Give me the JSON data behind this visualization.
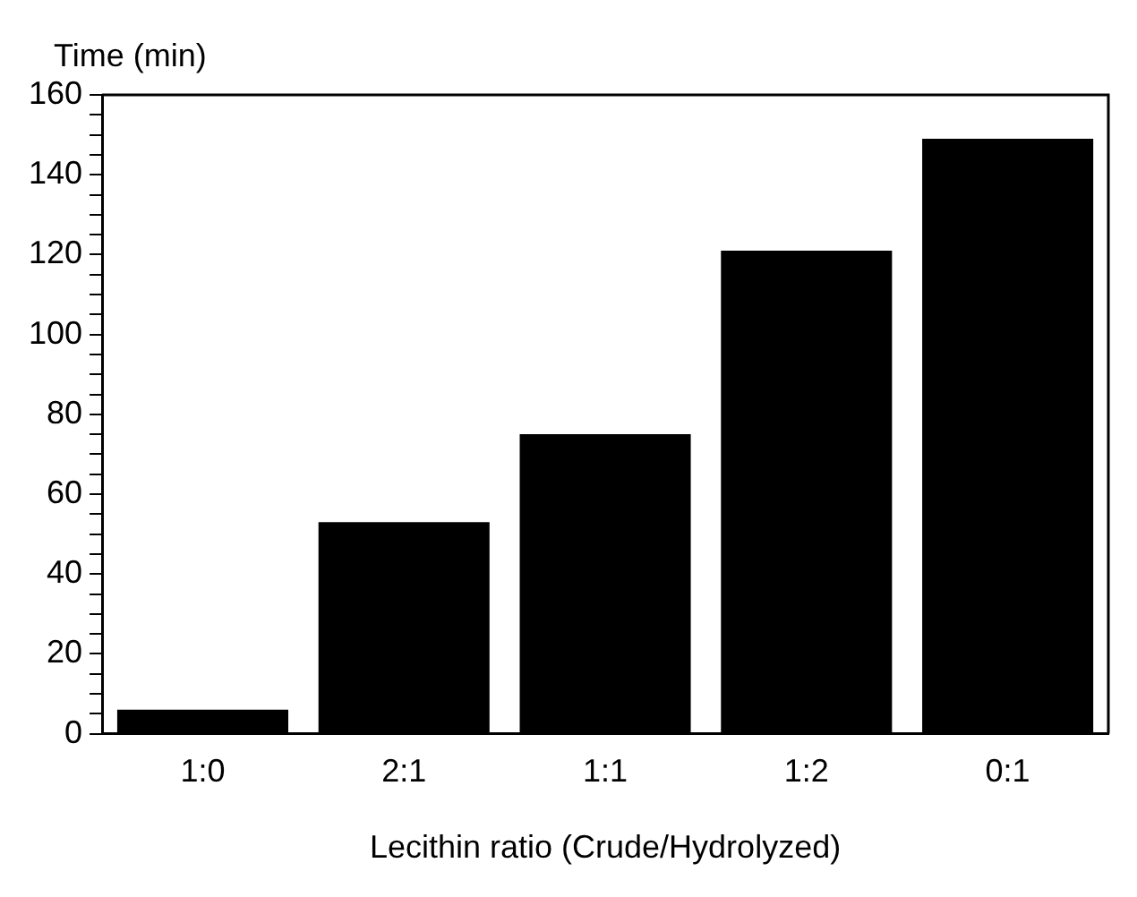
{
  "chart_data": {
    "type": "bar",
    "ylabel": "Time (min)",
    "xlabel": "Lecithin ratio (Crude/Hydrolyzed)",
    "categories": [
      "1:0",
      "2:1",
      "1:1",
      "1:2",
      "0:1"
    ],
    "values": [
      6,
      53,
      75,
      121,
      149
    ],
    "color": "#000000",
    "ylim": [
      0,
      160
    ],
    "yticks": [
      0,
      {
        "value": 5,
        "label": null
      },
      {
        "value": 10,
        "label": null
      },
      {
        "value": 15,
        "label": null
      },
      20,
      {
        "value": 25,
        "label": null
      },
      {
        "value": 30,
        "label": null
      },
      {
        "value": 35,
        "label": null
      },
      40,
      {
        "value": 45,
        "label": null
      },
      {
        "value": 50,
        "label": null
      },
      {
        "value": 55,
        "label": null
      },
      60,
      {
        "value": 65,
        "label": null
      },
      {
        "value": 70,
        "label": null
      },
      {
        "value": 75,
        "label": null
      },
      80,
      {
        "value": 85,
        "label": null
      },
      {
        "value": 90,
        "label": null
      },
      {
        "value": 95,
        "label": null
      },
      100,
      {
        "value": 105,
        "label": null
      },
      {
        "value": 110,
        "label": null
      },
      {
        "value": 115,
        "label": null
      },
      120,
      {
        "value": 125,
        "label": null
      },
      {
        "value": 130,
        "label": null
      },
      {
        "value": 135,
        "label": null
      },
      140,
      {
        "value": 145,
        "label": null
      },
      {
        "value": 150,
        "label": null
      },
      {
        "value": 155,
        "label": null
      },
      160
    ],
    "grid": false,
    "legend": false
  }
}
